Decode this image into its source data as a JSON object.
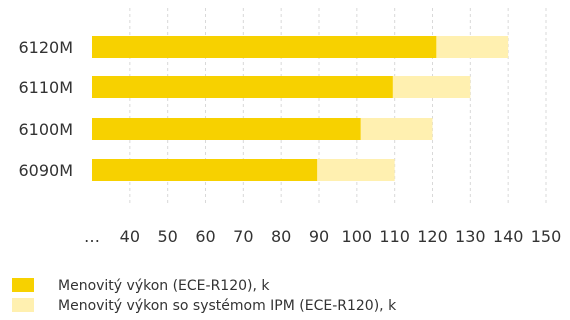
{
  "chart_data": {
    "type": "bar",
    "orientation": "horizontal",
    "stacked": false,
    "categories": [
      "6120M",
      "6110M",
      "6100M",
      "6090M"
    ],
    "series": [
      {
        "name": "Menovitý výkon so systémom IPM (ECE-R120), k",
        "color": "#fff0b0",
        "values": [
          140,
          130,
          120,
          110
        ]
      },
      {
        "name": "Menovitý výkon (ECE-R120), k",
        "color": "#f7d100",
        "values": [
          121,
          109.5,
          101,
          89.5
        ]
      }
    ],
    "x_ticks": [
      "…",
      "40",
      "50",
      "60",
      "70",
      "80",
      "90",
      "100",
      "110",
      "120",
      "130",
      "140",
      "150"
    ],
    "x_tick_values": [
      30,
      40,
      50,
      60,
      70,
      80,
      90,
      100,
      110,
      120,
      130,
      140,
      150
    ],
    "xlim": [
      30,
      150
    ],
    "grid": "vertical-dashed",
    "legend_position": "bottom-left",
    "title": "",
    "xlabel": "",
    "ylabel": ""
  }
}
